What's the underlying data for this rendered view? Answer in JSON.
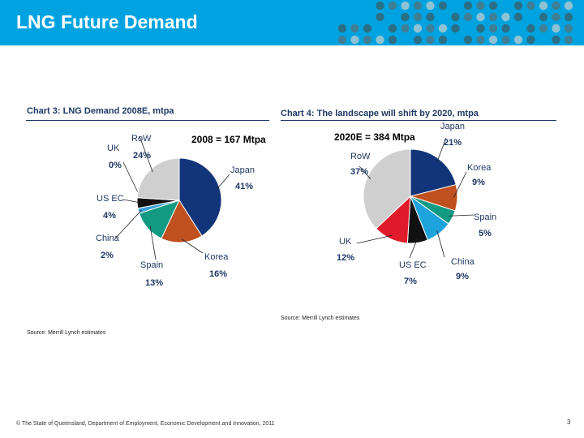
{
  "header": {
    "title": "LNG Future Demand",
    "background_color": "#00a3e0"
  },
  "chart_data": [
    {
      "type": "pie",
      "title": "Chart 3: LNG Demand 2008E, mtpa",
      "total_label": "2008 = 167 Mtpa",
      "source": "Source: Merrill Lynch estimates",
      "slices": [
        {
          "name": "Japan",
          "value": 41,
          "label": "41%",
          "color": "#12357a"
        },
        {
          "name": "Korea",
          "value": 16,
          "label": "16%",
          "color": "#c0501f"
        },
        {
          "name": "Spain",
          "value": 13,
          "label": "13%",
          "color": "#139a82"
        },
        {
          "name": "China",
          "value": 2,
          "label": "2%",
          "color": "#3aa0d8"
        },
        {
          "name": "US EC",
          "value": 4,
          "label": "4%",
          "color": "#111111"
        },
        {
          "name": "UK",
          "value": 0,
          "label": "0%",
          "color": "#d8182a"
        },
        {
          "name": "RoW",
          "value": 24,
          "label": "24%",
          "color": "#cfcfcf"
        }
      ]
    },
    {
      "type": "pie",
      "title": "Chart 4: The landscape will shift by 2020, mtpa",
      "total_label": "2020E = 384 Mtpa",
      "source": "Source: Merrill Lynch estimates",
      "slices": [
        {
          "name": "Japan",
          "value": 21,
          "label": "21%",
          "color": "#12357a"
        },
        {
          "name": "Korea",
          "value": 9,
          "label": "9%",
          "color": "#c0501f"
        },
        {
          "name": "Spain",
          "value": 5,
          "label": "5%",
          "color": "#139a82"
        },
        {
          "name": "China",
          "value": 9,
          "label": "9%",
          "color": "#1fa3dc"
        },
        {
          "name": "US EC",
          "value": 7,
          "label": "7%",
          "color": "#111111"
        },
        {
          "name": "UK",
          "value": 12,
          "label": "12%",
          "color": "#e01b2b"
        },
        {
          "name": "RoW",
          "value": 37,
          "label": "37%",
          "color": "#cfcfcf"
        }
      ]
    }
  ],
  "footer": {
    "copyright": "© The State of Queensland, Department of Employment, Economic Development and Innovation, 2011",
    "page_number": "3"
  }
}
